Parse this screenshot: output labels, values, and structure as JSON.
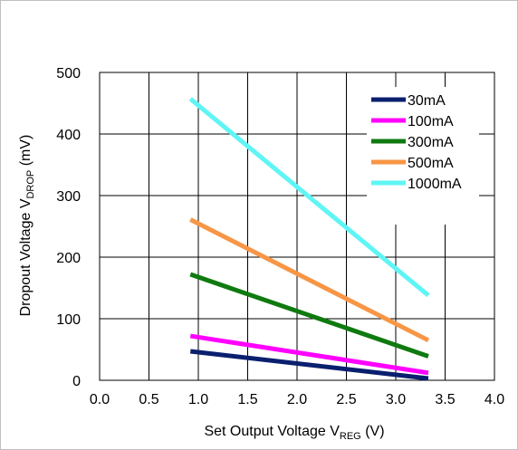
{
  "chart_data": {
    "type": "line",
    "title": "",
    "xlabel_parts": {
      "main": "Set Output Voltage V",
      "sub": "REG",
      "tail": " (V)"
    },
    "ylabel_parts": {
      "main": "Dropout Voltage V",
      "sub": "DROP",
      "tail": " (mV)"
    },
    "xlim": [
      0.0,
      4.0
    ],
    "ylim": [
      0,
      500
    ],
    "xticks": [
      "0.0",
      "0.5",
      "1.0",
      "1.5",
      "2.0",
      "2.5",
      "3.0",
      "3.5",
      "4.0"
    ],
    "yticks": [
      "0",
      "100",
      "200",
      "300",
      "400",
      "500"
    ],
    "grid": true,
    "legend_position": "top-right",
    "series": [
      {
        "name": "30mA",
        "color": "#0a1f6e",
        "x": [
          0.92,
          3.33
        ],
        "y": [
          47,
          3
        ]
      },
      {
        "name": "100mA",
        "color": "#ff00ff",
        "x": [
          0.92,
          3.33
        ],
        "y": [
          72,
          12
        ]
      },
      {
        "name": "300mA",
        "color": "#0f7a0f",
        "x": [
          0.92,
          3.33
        ],
        "y": [
          172,
          39
        ]
      },
      {
        "name": "500mA",
        "color": "#f79646",
        "x": [
          0.92,
          3.33
        ],
        "y": [
          261,
          65
        ]
      },
      {
        "name": "1000mA",
        "color": "#5ff5f5",
        "x": [
          0.92,
          3.33
        ],
        "y": [
          457,
          138
        ]
      }
    ]
  }
}
